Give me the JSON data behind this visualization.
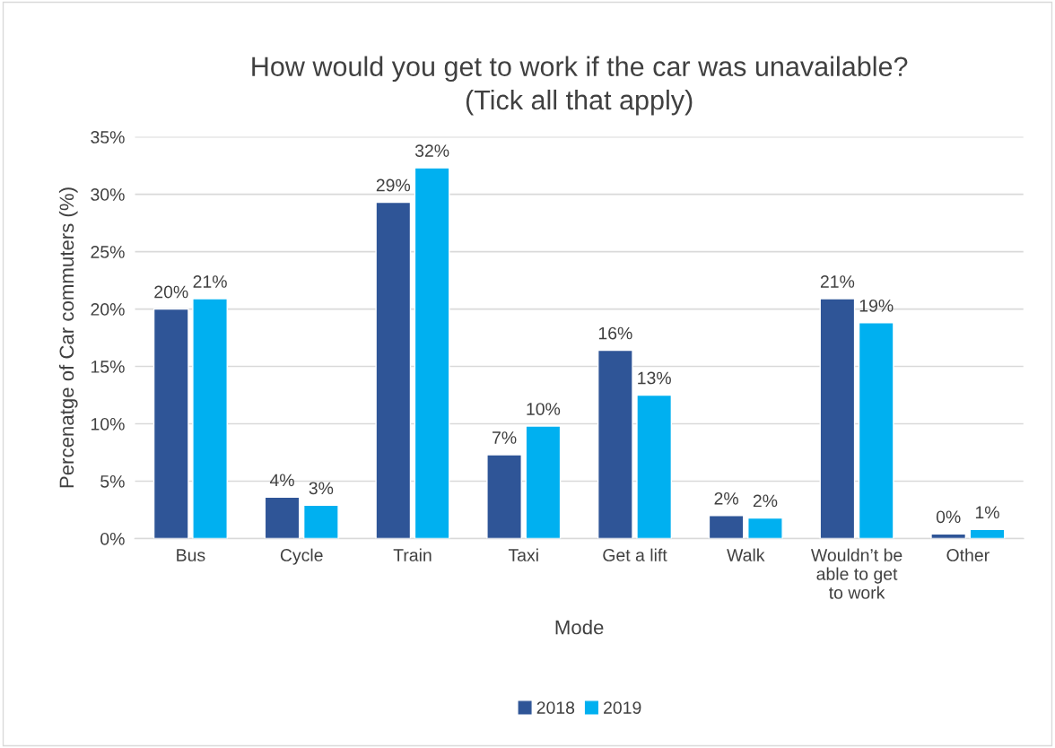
{
  "chart_data": {
    "type": "bar",
    "title": "How would you get to work if the car was unavailable?\n(Tick all that apply)",
    "xlabel": "Mode",
    "ylabel": "Percenatge of Car commuters (%)",
    "categories": [
      "Bus",
      "Cycle",
      "Train",
      "Taxi",
      "Get a lift",
      "Walk",
      "Wouldn’t be\nable to get\nto work",
      "Other"
    ],
    "series": [
      {
        "name": "2018",
        "color": "#2f5597",
        "values": [
          20.0,
          3.6,
          29.3,
          7.3,
          16.4,
          2.0,
          20.9,
          0.4
        ],
        "value_labels": [
          "20%",
          "4%",
          "29%",
          "7%",
          "16%",
          "2%",
          "21%",
          "0%"
        ]
      },
      {
        "name": "2019",
        "color": "#00b0f0",
        "values": [
          20.9,
          2.9,
          32.3,
          9.8,
          12.5,
          1.8,
          18.8,
          0.8
        ],
        "value_labels": [
          "21%",
          "3%",
          "32%",
          "10%",
          "13%",
          "2%",
          "19%",
          "1%"
        ]
      }
    ],
    "ylim": [
      0,
      35
    ],
    "yticks": [
      {
        "value": 0,
        "label": "0%"
      },
      {
        "value": 5,
        "label": "5%"
      },
      {
        "value": 10,
        "label": "10%"
      },
      {
        "value": 15,
        "label": "15%"
      },
      {
        "value": 20,
        "label": "20%"
      },
      {
        "value": 25,
        "label": "25%"
      },
      {
        "value": 30,
        "label": "30%"
      },
      {
        "value": 35,
        "label": "35%"
      }
    ],
    "grid": "y",
    "legend": "bottom"
  }
}
